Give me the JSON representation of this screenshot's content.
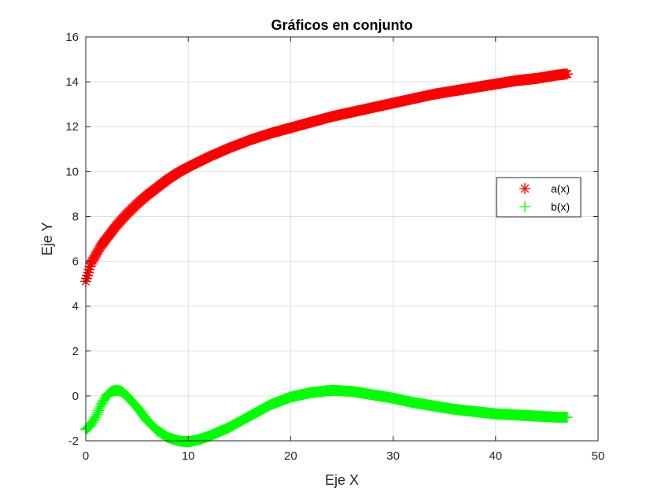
{
  "chart_data": {
    "type": "scatter",
    "title": "Gráficos en conjunto",
    "xlabel": "Eje X",
    "ylabel": "Eje Y",
    "xlim": [
      0,
      50
    ],
    "ylim": [
      -2,
      16
    ],
    "xticks": [
      0,
      10,
      20,
      30,
      40,
      50
    ],
    "yticks": [
      -2,
      0,
      2,
      4,
      6,
      8,
      10,
      12,
      14,
      16
    ],
    "grid": true,
    "legend_position": "right",
    "series": [
      {
        "name": "a(x)",
        "marker": "asterisk",
        "color": "#ff0000",
        "x": [
          0,
          0.5,
          1,
          1.5,
          2,
          3,
          4,
          5,
          6,
          7,
          8,
          9,
          10,
          12,
          14,
          16,
          18,
          20,
          22,
          24,
          26,
          28,
          30,
          32,
          34,
          36,
          38,
          40,
          42,
          44,
          46,
          47
        ],
        "y": [
          5.1,
          5.9,
          6.3,
          6.7,
          7.0,
          7.6,
          8.1,
          8.55,
          8.95,
          9.3,
          9.65,
          9.95,
          10.2,
          10.65,
          11.05,
          11.4,
          11.7,
          11.95,
          12.2,
          12.45,
          12.65,
          12.85,
          13.05,
          13.25,
          13.45,
          13.6,
          13.75,
          13.9,
          14.05,
          14.15,
          14.3,
          14.35
        ]
      },
      {
        "name": "b(x)",
        "marker": "plus",
        "color": "#00ff00",
        "x": [
          0,
          0.5,
          1,
          1.5,
          2,
          2.5,
          3,
          3.5,
          4,
          5,
          6,
          7,
          8,
          9,
          10,
          11,
          12,
          13,
          14,
          16,
          18,
          20,
          22,
          24,
          26,
          28,
          30,
          32,
          34,
          36,
          38,
          40,
          42,
          44,
          46,
          47
        ],
        "y": [
          -1.5,
          -1.3,
          -0.9,
          -0.4,
          0.0,
          0.2,
          0.25,
          0.2,
          0.0,
          -0.5,
          -1.1,
          -1.55,
          -1.85,
          -2.0,
          -2.05,
          -1.95,
          -1.8,
          -1.6,
          -1.4,
          -0.9,
          -0.4,
          -0.05,
          0.15,
          0.25,
          0.2,
          0.05,
          -0.1,
          -0.3,
          -0.45,
          -0.6,
          -0.7,
          -0.8,
          -0.85,
          -0.9,
          -0.95,
          -0.95
        ]
      }
    ]
  }
}
